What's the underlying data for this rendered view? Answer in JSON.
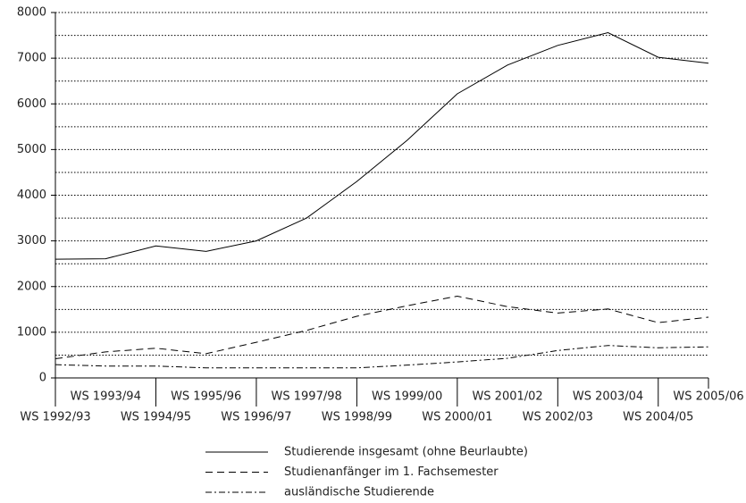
{
  "chart_data": {
    "type": "line",
    "categories": [
      "WS 1992/93",
      "WS 1993/94",
      "WS 1994/95",
      "WS 1995/96",
      "WS 1996/97",
      "WS 1997/98",
      "WS 1998/99",
      "WS 1999/00",
      "WS 2000/01",
      "WS 2001/02",
      "WS 2002/03",
      "WS 2003/04",
      "WS 2004/05",
      "WS 2005/06"
    ],
    "series": [
      {
        "name": "Studierende insgesamt (ohne Beurlaubte)",
        "color": "#000000",
        "dash": "solid",
        "values": [
          2600,
          2610,
          2890,
          2770,
          3000,
          3500,
          4300,
          5200,
          6220,
          6850,
          7280,
          7560,
          7020,
          6890
        ]
      },
      {
        "name": "Studienanfänger im 1. Fachsemester",
        "color": "#000000",
        "dash": "dashed",
        "values": [
          420,
          570,
          650,
          530,
          780,
          1040,
          1350,
          1580,
          1790,
          1560,
          1420,
          1510,
          1210,
          1330
        ]
      },
      {
        "name": "ausländische Studierende",
        "color": "#000000",
        "dash": "dashdot",
        "values": [
          290,
          260,
          260,
          220,
          220,
          220,
          220,
          280,
          350,
          430,
          600,
          710,
          660,
          680
        ]
      }
    ],
    "ylim": [
      0,
      8000
    ],
    "yticks": [
      0,
      1000,
      2000,
      3000,
      4000,
      5000,
      6000,
      7000,
      8000
    ],
    "yminor": [
      500,
      1500,
      2500,
      3500,
      4500,
      5500,
      6500,
      7500
    ],
    "grid": true,
    "legend": "bottom"
  }
}
